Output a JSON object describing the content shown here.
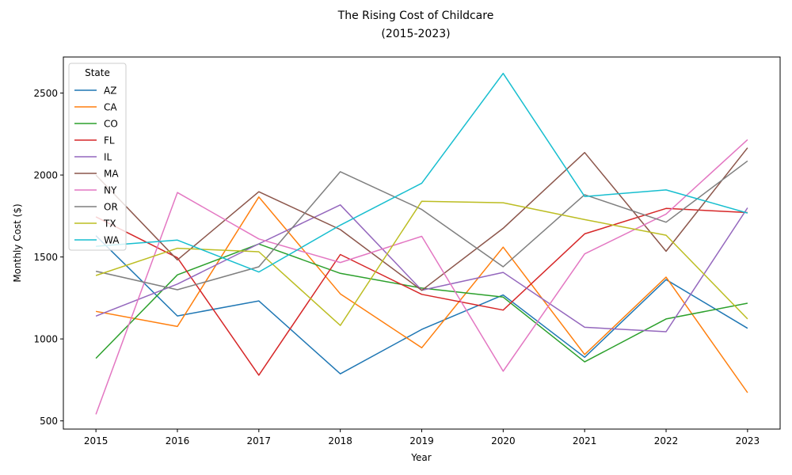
{
  "chart_data": {
    "type": "line",
    "title": "The Rising Cost of Childcare",
    "subtitle": "(2015-2023)",
    "xlabel": "Year",
    "ylabel": "Monthly Cost ($)",
    "x": [
      2015,
      2016,
      2017,
      2018,
      2019,
      2020,
      2021,
      2022,
      2023
    ],
    "x_ticks": [
      "2015",
      "2016",
      "2017",
      "2018",
      "2019",
      "2020",
      "2021",
      "2022",
      "2023"
    ],
    "xlim": [
      2014.6,
      2023.4
    ],
    "ylim": [
      450,
      2720
    ],
    "y_ticks": [
      500,
      1000,
      1500,
      2000,
      2500
    ],
    "y_tick_labels": [
      "500",
      "1000",
      "1500",
      "2000",
      "2500"
    ],
    "grid": false,
    "legend": {
      "title": "State",
      "placement": "top-left"
    },
    "series": [
      {
        "name": "AZ",
        "color": "#1f77b4",
        "values": [
          1630,
          1140,
          1232,
          787,
          1058,
          1268,
          888,
          1362,
          1065
        ]
      },
      {
        "name": "CA",
        "color": "#ff7f0e",
        "values": [
          1168,
          1076,
          1866,
          1275,
          946,
          1560,
          905,
          1377,
          672
        ]
      },
      {
        "name": "CO",
        "color": "#2ca02c",
        "values": [
          882,
          1391,
          1579,
          1400,
          1310,
          1255,
          860,
          1122,
          1218
        ]
      },
      {
        "name": "FL",
        "color": "#d62728",
        "values": [
          1745,
          1495,
          779,
          1515,
          1272,
          1176,
          1641,
          1796,
          1771
        ]
      },
      {
        "name": "IL",
        "color": "#9467bd",
        "values": [
          1139,
          1335,
          1580,
          1818,
          1297,
          1406,
          1071,
          1044,
          1800
        ]
      },
      {
        "name": "MA",
        "color": "#8c564b",
        "values": [
          2000,
          1482,
          1898,
          1667,
          1296,
          1675,
          2137,
          1535,
          2166
        ]
      },
      {
        "name": "NY",
        "color": "#e377c2",
        "values": [
          540,
          1893,
          1610,
          1466,
          1626,
          803,
          1519,
          1762,
          2216
        ]
      },
      {
        "name": "OR",
        "color": "#7f7f7f",
        "values": [
          1413,
          1300,
          1440,
          2020,
          1790,
          1440,
          1880,
          1712,
          2086
        ]
      },
      {
        "name": "TX",
        "color": "#bcbd22",
        "values": [
          1387,
          1553,
          1532,
          1082,
          1840,
          1831,
          1728,
          1633,
          1122
        ]
      },
      {
        "name": "WA",
        "color": "#17becf",
        "values": [
          1565,
          1603,
          1408,
          1694,
          1950,
          2620,
          1869,
          1909,
          1768
        ]
      }
    ]
  }
}
